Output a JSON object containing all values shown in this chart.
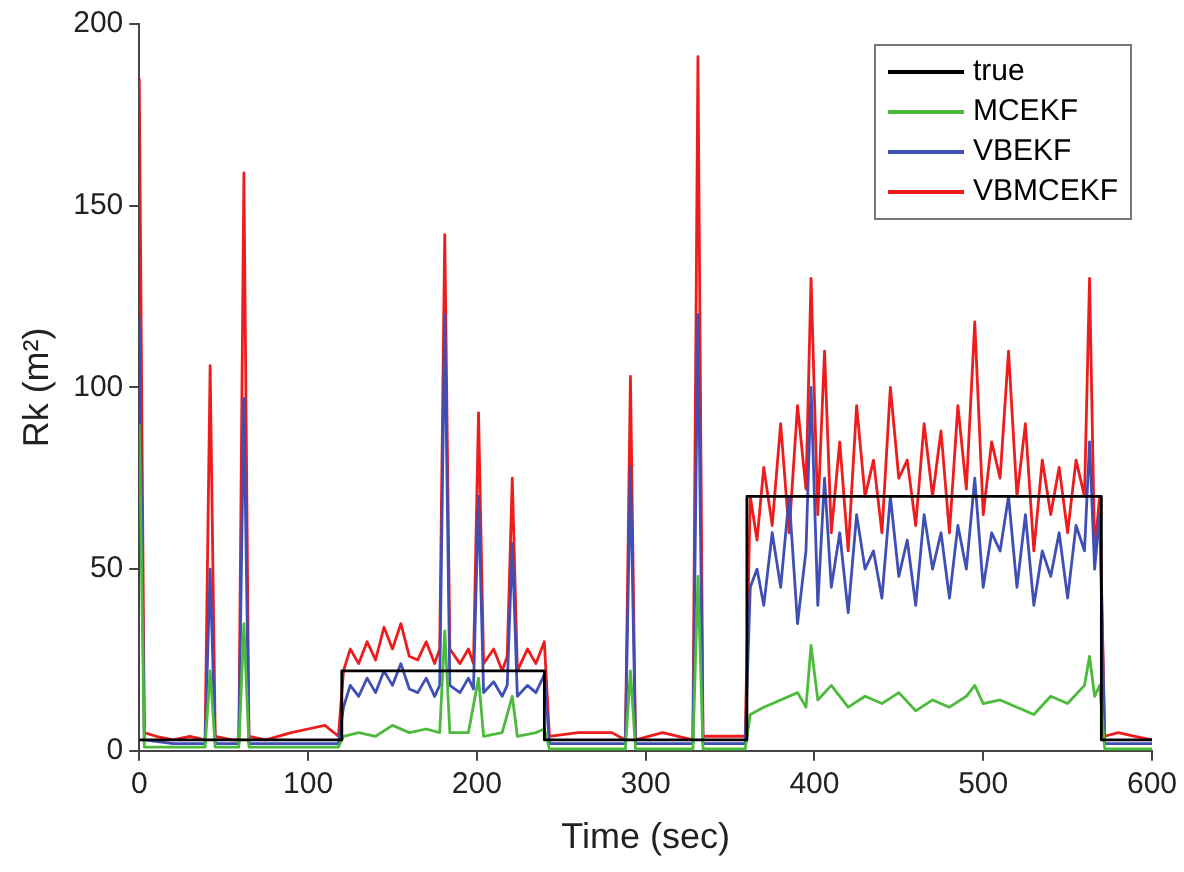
{
  "chart_data": {
    "type": "line",
    "xlabel": "Time (sec)",
    "ylabel": "Rk (m²)",
    "xlim": [
      0,
      600
    ],
    "xticks": [
      0,
      100,
      200,
      300,
      400,
      500,
      600
    ],
    "ylim": [
      0,
      200
    ],
    "yticks": [
      0,
      50,
      100,
      150,
      200
    ],
    "grid": false,
    "legend": "top right",
    "marker": "none",
    "line_style": "solid",
    "series": [
      {
        "name": "true",
        "color": "#000000",
        "x": [
          0,
          120,
          120,
          240,
          240,
          360,
          360,
          570,
          570,
          600
        ],
        "values": [
          3,
          3,
          22,
          22,
          3,
          3,
          70,
          70,
          3,
          3
        ]
      },
      {
        "name": "MCEKF",
        "color": "#4cbb3c",
        "x": [
          0,
          3,
          39,
          42,
          45,
          59,
          62,
          65,
          118,
          121,
          130,
          140,
          150,
          160,
          170,
          178,
          181,
          184,
          195,
          201,
          204,
          215,
          221,
          224,
          235,
          240,
          243,
          288,
          291,
          294,
          328,
          331,
          334,
          359,
          362,
          370,
          380,
          390,
          395,
          398,
          402,
          410,
          420,
          430,
          440,
          450,
          460,
          470,
          480,
          490,
          495,
          500,
          510,
          520,
          530,
          540,
          550,
          560,
          563,
          566,
          569,
          572,
          600
        ],
        "values": [
          90,
          1,
          1,
          22,
          1,
          1,
          35,
          1,
          1,
          4,
          5,
          4,
          7,
          5,
          6,
          5,
          33,
          5,
          5,
          20,
          4,
          5,
          15,
          4,
          5,
          6,
          0.5,
          0.5,
          22,
          0.5,
          0.5,
          48,
          0.5,
          0.5,
          10,
          12,
          14,
          16,
          12,
          29,
          14,
          18,
          12,
          15,
          13,
          16,
          11,
          14,
          12,
          15,
          18,
          13,
          14,
          12,
          10,
          15,
          13,
          18,
          26,
          15,
          18,
          0.5,
          0.5
        ]
      },
      {
        "name": "VBEKF",
        "color": "#3f4fb5",
        "x": [
          0,
          3,
          20,
          39,
          42,
          45,
          59,
          62,
          65,
          118,
          121,
          125,
          130,
          135,
          140,
          145,
          150,
          155,
          160,
          165,
          170,
          175,
          178,
          181,
          184,
          190,
          195,
          198,
          201,
          204,
          210,
          215,
          218,
          221,
          224,
          230,
          235,
          240,
          243,
          288,
          291,
          294,
          328,
          331,
          334,
          359,
          362,
          366,
          370,
          375,
          380,
          385,
          390,
          395,
          398,
          402,
          406,
          410,
          415,
          420,
          425,
          430,
          435,
          440,
          445,
          450,
          455,
          460,
          465,
          470,
          475,
          480,
          485,
          490,
          495,
          500,
          505,
          510,
          515,
          520,
          525,
          530,
          535,
          540,
          545,
          550,
          555,
          560,
          563,
          566,
          569,
          572,
          600
        ],
        "values": [
          120,
          3,
          2,
          2,
          50,
          2,
          2,
          97,
          2,
          2,
          12,
          18,
          15,
          20,
          16,
          22,
          18,
          24,
          17,
          16,
          20,
          15,
          18,
          120,
          18,
          16,
          20,
          17,
          70,
          16,
          19,
          15,
          18,
          57,
          15,
          18,
          16,
          21,
          2,
          2,
          78,
          2,
          2,
          120,
          2,
          2,
          45,
          50,
          40,
          60,
          45,
          70,
          35,
          55,
          100,
          40,
          75,
          45,
          60,
          38,
          65,
          50,
          55,
          42,
          70,
          48,
          58,
          40,
          65,
          50,
          60,
          42,
          62,
          50,
          75,
          45,
          60,
          55,
          70,
          45,
          65,
          40,
          55,
          48,
          60,
          42,
          62,
          55,
          85,
          50,
          65,
          2,
          2
        ]
      },
      {
        "name": "VBMCEKF",
        "color": "#ee1c1c",
        "x": [
          0,
          3,
          10,
          20,
          30,
          39,
          42,
          45,
          55,
          59,
          62,
          65,
          75,
          90,
          100,
          110,
          118,
          121,
          125,
          130,
          135,
          140,
          145,
          150,
          155,
          160,
          165,
          170,
          175,
          178,
          181,
          184,
          190,
          195,
          198,
          201,
          204,
          210,
          215,
          218,
          221,
          224,
          230,
          235,
          240,
          243,
          260,
          280,
          288,
          291,
          294,
          310,
          328,
          331,
          334,
          350,
          359,
          362,
          366,
          370,
          375,
          380,
          385,
          390,
          395,
          398,
          402,
          406,
          410,
          415,
          420,
          425,
          430,
          435,
          440,
          445,
          450,
          455,
          460,
          465,
          470,
          475,
          480,
          485,
          490,
          495,
          500,
          505,
          510,
          515,
          520,
          525,
          530,
          535,
          540,
          545,
          550,
          555,
          560,
          563,
          566,
          569,
          572,
          580,
          590,
          600
        ],
        "values": [
          185,
          5,
          4,
          3,
          4,
          3,
          106,
          4,
          3,
          3,
          159,
          4,
          3,
          5,
          6,
          7,
          4,
          22,
          28,
          24,
          30,
          25,
          34,
          28,
          35,
          26,
          25,
          30,
          24,
          28,
          142,
          28,
          24,
          28,
          24,
          93,
          24,
          28,
          22,
          26,
          75,
          22,
          28,
          24,
          30,
          4,
          5,
          5,
          3,
          103,
          3,
          5,
          3,
          191,
          4,
          4,
          4,
          70,
          58,
          78,
          62,
          90,
          60,
          95,
          72,
          130,
          65,
          110,
          60,
          85,
          55,
          95,
          70,
          80,
          60,
          100,
          75,
          80,
          62,
          90,
          70,
          88,
          60,
          95,
          72,
          118,
          65,
          85,
          75,
          110,
          70,
          90,
          55,
          80,
          65,
          78,
          60,
          80,
          70,
          130,
          55,
          70,
          4,
          5,
          4,
          3
        ]
      }
    ]
  }
}
